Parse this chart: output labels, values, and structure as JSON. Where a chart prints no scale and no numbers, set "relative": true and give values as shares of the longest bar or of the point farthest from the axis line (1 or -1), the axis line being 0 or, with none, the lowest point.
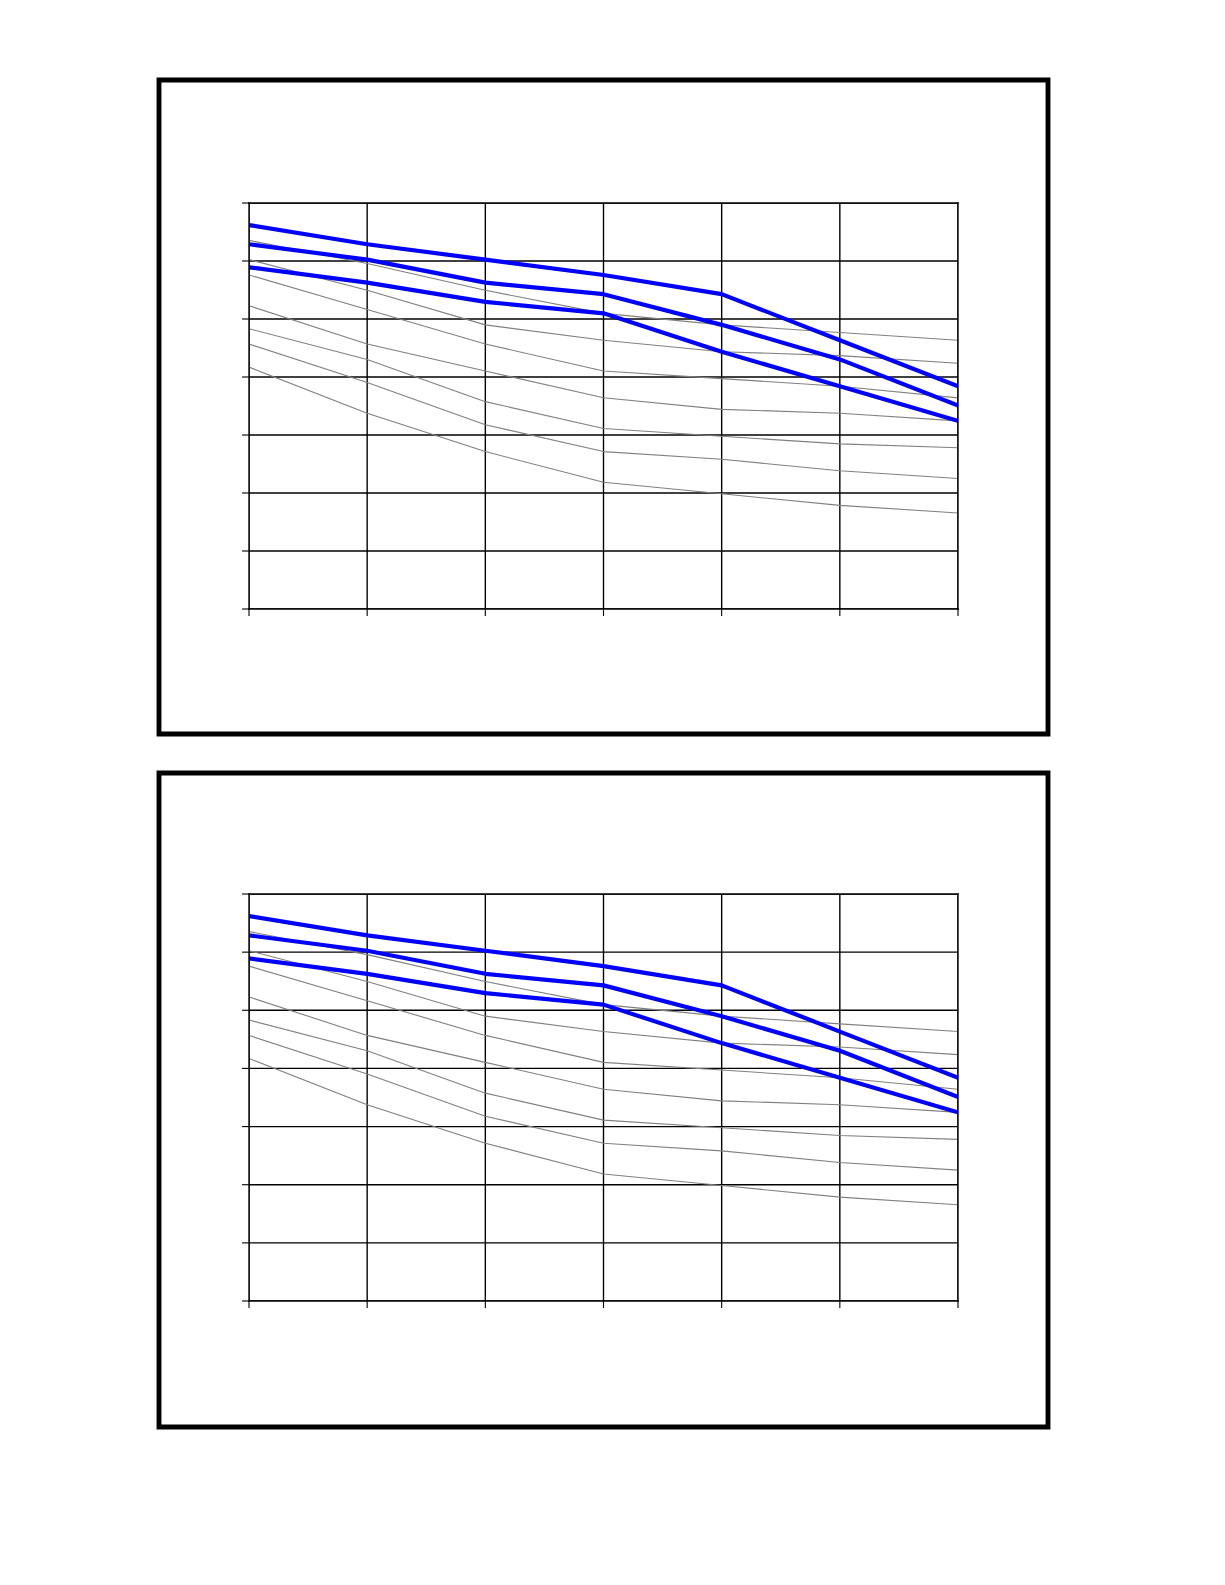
{
  "chart_data": [
    {
      "type": "line",
      "relative": true,
      "grid": true,
      "categories": [
        null,
        null,
        null,
        null,
        null,
        null,
        null
      ],
      "series": [
        {
          "color": "#808080",
          "values": [
            0.96,
            0.9,
            0.83,
            0.77,
            0.74,
            0.72,
            0.7
          ]
        },
        {
          "color": "#808080",
          "values": [
            0.91,
            0.83,
            0.74,
            0.7,
            0.67,
            0.66,
            0.64
          ]
        },
        {
          "color": "#808080",
          "values": [
            0.87,
            0.78,
            0.69,
            0.62,
            0.6,
            0.58,
            0.55
          ]
        },
        {
          "color": "#808080",
          "values": [
            0.79,
            0.69,
            0.62,
            0.55,
            0.52,
            0.51,
            0.49
          ]
        },
        {
          "color": "#808080",
          "values": [
            0.73,
            0.65,
            0.54,
            0.47,
            0.45,
            0.43,
            0.42
          ]
        },
        {
          "color": "#808080",
          "values": [
            0.69,
            0.59,
            0.48,
            0.41,
            0.39,
            0.36,
            0.34
          ]
        },
        {
          "color": "#808080",
          "values": [
            0.63,
            0.51,
            0.41,
            0.33,
            0.3,
            0.27,
            0.25
          ]
        },
        {
          "color": "#0000ff",
          "values": [
            1.0,
            0.95,
            0.91,
            0.87,
            0.82,
            0.7,
            0.58
          ]
        },
        {
          "color": "#0000ff",
          "values": [
            0.95,
            0.91,
            0.85,
            0.82,
            0.74,
            0.65,
            0.53
          ]
        },
        {
          "color": "#0000ff",
          "values": [
            0.89,
            0.85,
            0.8,
            0.77,
            0.67,
            0.58,
            0.49
          ]
        }
      ]
    },
    {
      "type": "line",
      "relative": true,
      "grid": true,
      "categories": [
        null,
        null,
        null,
        null,
        null,
        null,
        null
      ],
      "series": [
        {
          "color": "#808080",
          "values": [
            0.96,
            0.9,
            0.83,
            0.77,
            0.74,
            0.72,
            0.7
          ]
        },
        {
          "color": "#808080",
          "values": [
            0.91,
            0.83,
            0.74,
            0.7,
            0.67,
            0.66,
            0.64
          ]
        },
        {
          "color": "#808080",
          "values": [
            0.87,
            0.78,
            0.69,
            0.62,
            0.6,
            0.58,
            0.55
          ]
        },
        {
          "color": "#808080",
          "values": [
            0.79,
            0.69,
            0.62,
            0.55,
            0.52,
            0.51,
            0.49
          ]
        },
        {
          "color": "#808080",
          "values": [
            0.73,
            0.65,
            0.54,
            0.47,
            0.45,
            0.43,
            0.42
          ]
        },
        {
          "color": "#808080",
          "values": [
            0.69,
            0.59,
            0.48,
            0.41,
            0.39,
            0.36,
            0.34
          ]
        },
        {
          "color": "#808080",
          "values": [
            0.63,
            0.51,
            0.41,
            0.33,
            0.3,
            0.27,
            0.25
          ]
        },
        {
          "color": "#0000ff",
          "values": [
            1.0,
            0.95,
            0.91,
            0.87,
            0.82,
            0.7,
            0.58
          ]
        },
        {
          "color": "#0000ff",
          "values": [
            0.95,
            0.91,
            0.85,
            0.82,
            0.74,
            0.65,
            0.53
          ]
        },
        {
          "color": "#0000ff",
          "values": [
            0.89,
            0.85,
            0.8,
            0.77,
            0.67,
            0.58,
            0.49
          ]
        }
      ]
    }
  ]
}
